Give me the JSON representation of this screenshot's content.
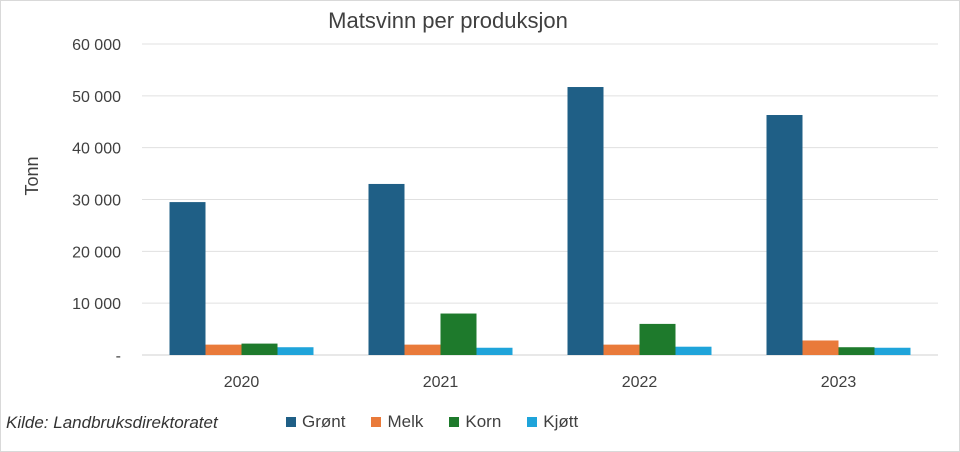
{
  "chart_data": {
    "type": "bar",
    "title": "Matsvinn per produksjon",
    "ylabel": "Tonn",
    "xlabel": "",
    "categories": [
      "2020",
      "2021",
      "2022",
      "2023"
    ],
    "series": [
      {
        "name": "Grønt",
        "color": "#1f5f86",
        "values": [
          29500,
          33000,
          51700,
          46300
        ]
      },
      {
        "name": "Melk",
        "color": "#e97a3a",
        "values": [
          2000,
          2000,
          2000,
          2800
        ]
      },
      {
        "name": "Korn",
        "color": "#1e7a2c",
        "values": [
          2200,
          8000,
          6000,
          1500
        ]
      },
      {
        "name": "Kjøtt",
        "color": "#1fa4da",
        "values": [
          1500,
          1400,
          1600,
          1400
        ]
      }
    ],
    "ylim": [
      0,
      60000
    ],
    "yticks": [
      0,
      10000,
      20000,
      30000,
      40000,
      50000,
      60000
    ],
    "ytick_labels": [
      "-",
      "10 000",
      "20 000",
      "30 000",
      "40 000",
      "50 000",
      "60 000"
    ],
    "grid": true,
    "legend_position": "bottom"
  },
  "source": "Kilde: Landbruksdirektoratet"
}
